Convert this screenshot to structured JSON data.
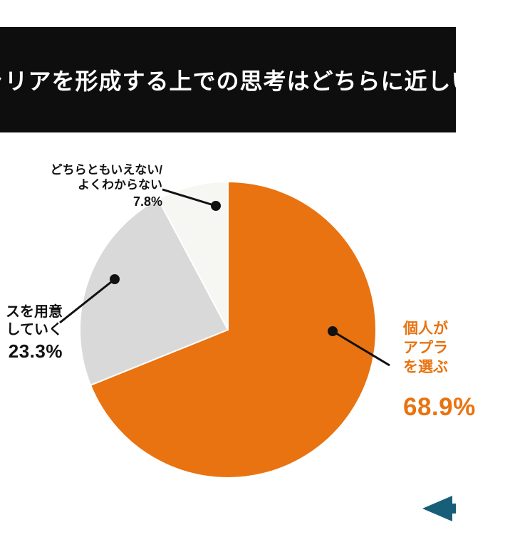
{
  "header": {
    "title": "ャリアを形成する上での思考はどちらに近しい",
    "bg_color": "#0e0e0e",
    "text_color": "#ffffff"
  },
  "chart_data": {
    "type": "pie",
    "title": "ャリアを形成する上での思考はどちらに近しい",
    "start_angle_deg": 0,
    "direction": "clockwise",
    "legend_position": "none",
    "slices": [
      {
        "label": "個人が… アプラ… を選ぶ",
        "value": 68.9,
        "color": "#e87310"
      },
      {
        "label": "…スを用意 …していく",
        "value": 23.3,
        "color": "#d9d9d9"
      },
      {
        "label": "どちらともいえない/よくわからない",
        "value": 7.8,
        "color": "#f6f6f2"
      }
    ]
  },
  "callouts": {
    "neither": {
      "lines": [
        "どちらともいえない/",
        "よくわからない"
      ],
      "value": "7.8%"
    },
    "company": {
      "lines": [
        "スを用意",
        "していく"
      ],
      "value": "23.3%"
    },
    "individual": {
      "lines": [
        "個人が",
        "アプラ",
        "を選ぶ"
      ],
      "value": "68.9%",
      "color": "#e87310"
    }
  },
  "footer": {
    "arrow_icon_color": "#175e78"
  }
}
